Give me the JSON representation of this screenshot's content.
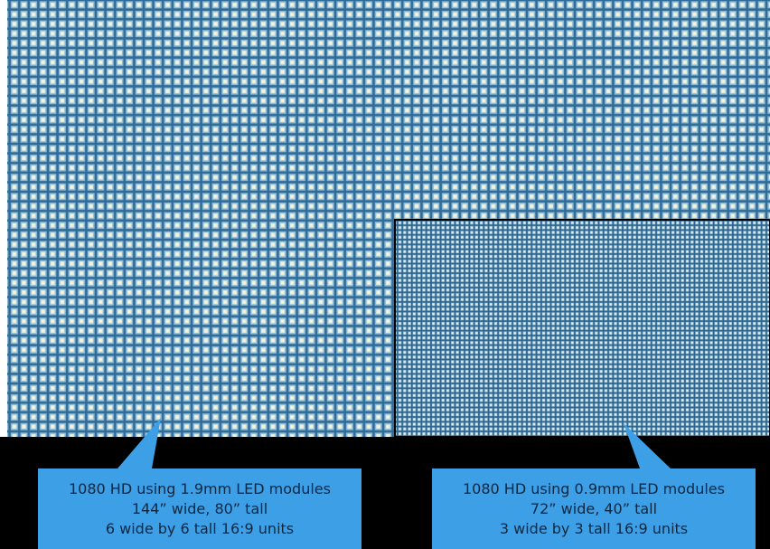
{
  "callouts": [
    {
      "lines": [
        "1080 HD using 1.9mm LED modules",
        "144” wide, 80” tall",
        "6 wide by 6 tall 16:9 units"
      ]
    },
    {
      "lines": [
        "1080 HD using 0.9mm LED modules",
        "72” wide, 40” tall",
        "3 wide by 3 tall 16:9 units"
      ]
    }
  ]
}
